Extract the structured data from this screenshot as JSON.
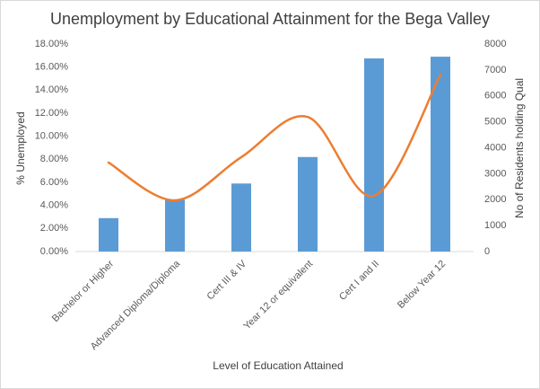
{
  "chart_data": {
    "type": "combo",
    "title": "Unemployment by Educational Attainment for the Bega Valley",
    "x_label": "Level of Education Attained",
    "y_label": "% Unemployed",
    "y2_label": "No of Residents holding Qual",
    "categories": [
      "Bachelor or Higher",
      "Advanced Diploma/Diploma",
      "Cert III & IV",
      "Year 12 or equivalent",
      "Cert I and II",
      "Below Year 12"
    ],
    "series": [
      {
        "type": "bar",
        "color": "#5b9bd5",
        "values": [
          2.9,
          4.5,
          5.9,
          8.2,
          16.75,
          16.9
        ]
      },
      {
        "type": "line",
        "axis": "y2",
        "color": "#ed7d31",
        "smooth": true,
        "values": [
          3430,
          1975,
          3640,
          5190,
          2150,
          6820
        ]
      }
    ],
    "ylim": [
      0,
      18
    ],
    "yticks": [
      {
        "value": 0,
        "label": "0.00%"
      },
      {
        "value": 2,
        "label": "2.00%"
      },
      {
        "value": 4,
        "label": "4.00%"
      },
      {
        "value": 6,
        "label": "6.00%"
      },
      {
        "value": 8,
        "label": "8.00%"
      },
      {
        "value": 10,
        "label": "10.00%"
      },
      {
        "value": 12,
        "label": "12.00%"
      },
      {
        "value": 14,
        "label": "14.00%"
      },
      {
        "value": 16,
        "label": "16.00%"
      },
      {
        "value": 18,
        "label": "18.00%"
      }
    ],
    "y2lim": [
      0,
      8000
    ],
    "y2ticks": [
      0,
      1000,
      2000,
      3000,
      4000,
      5000,
      6000,
      7000,
      8000
    ],
    "grid": false
  }
}
